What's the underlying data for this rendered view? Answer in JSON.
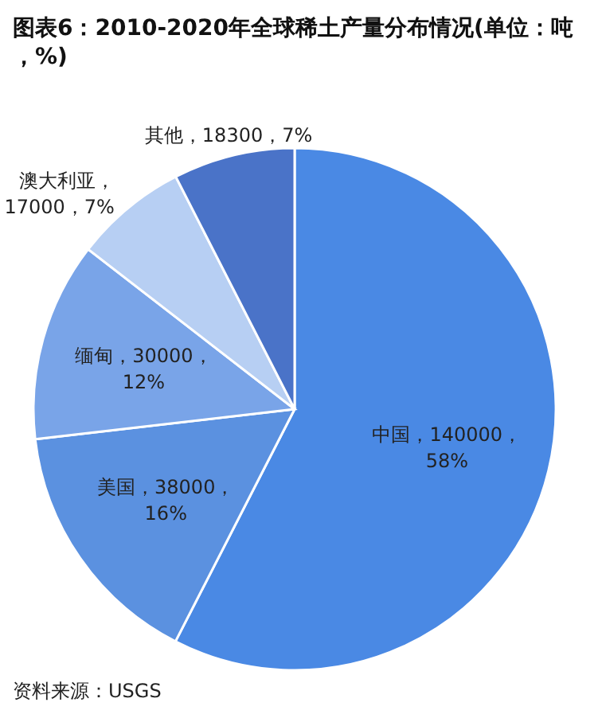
{
  "chart_data": {
    "type": "pie",
    "title": "图表6：2010-2020年全球稀土产量分布情况(单位：吨，%)",
    "categories": [
      "中国",
      "美国",
      "缅甸",
      "澳大利亚",
      "其他"
    ],
    "values": [
      140000,
      38000,
      30000,
      17000,
      18300
    ],
    "colors": [
      "#4a89e4",
      "#5b91e0",
      "#79a4e8",
      "#b7cff3",
      "#4a73c8"
    ],
    "value_labels": [
      "，140000，\n58%",
      "，38000，\n16%",
      "，30000，\n12%",
      "，\n17000，7%",
      "，18300，7%"
    ],
    "annotations": [
      "资料来源：USGS"
    ]
  }
}
